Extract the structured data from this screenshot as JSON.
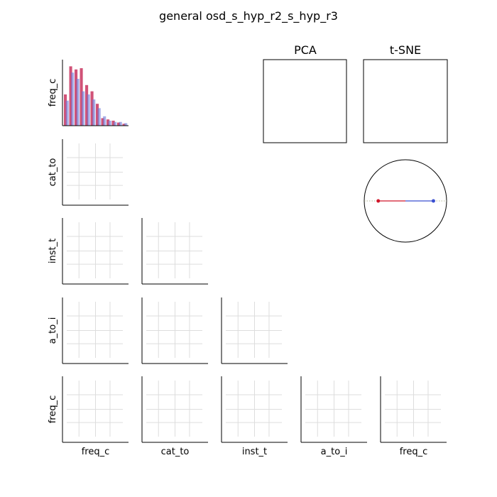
{
  "title": "general osd_s_hyp_r2_s_hyp_r3",
  "variables": [
    "freq_c",
    "cat_to",
    "inst_t",
    "a_to_i",
    "freq_c"
  ],
  "panels": {
    "pca_title": "PCA",
    "tsne_title": "t-SNE"
  },
  "colors": {
    "series_red": "#c0184a",
    "series_blue": "#6a78d8",
    "grid": "#dddddd",
    "axis": "#000000",
    "circle_red_line": "#d0162a",
    "circle_blue_line": "#3a4fd0"
  },
  "chart_data": [
    {
      "type": "bar",
      "panel": "freq_c histogram",
      "ylabel": "freq_c",
      "series": [
        {
          "color": "red",
          "values": [
            0.5,
            0.95,
            0.9,
            0.92,
            0.65,
            0.55,
            0.35,
            0.12,
            0.1,
            0.08,
            0.05,
            0.03
          ]
        },
        {
          "color": "blue",
          "values": [
            0.4,
            0.85,
            0.75,
            0.55,
            0.5,
            0.42,
            0.28,
            0.15,
            0.08,
            0.06,
            0.06,
            0.04
          ]
        }
      ]
    },
    {
      "type": "scatter",
      "panel": "pairwise grid",
      "row_labels": [
        "freq_c",
        "cat_to",
        "inst_t",
        "a_to_i",
        "freq_c"
      ],
      "col_labels": [
        "freq_c",
        "cat_to",
        "inst_t",
        "a_to_i",
        "freq_c"
      ],
      "grid": true,
      "points": []
    },
    {
      "type": "scatter",
      "panel": "circle",
      "points": [
        {
          "x": -0.66,
          "y": 0.0,
          "color": "red"
        },
        {
          "x": 0.68,
          "y": 0.0,
          "color": "blue"
        }
      ]
    }
  ]
}
